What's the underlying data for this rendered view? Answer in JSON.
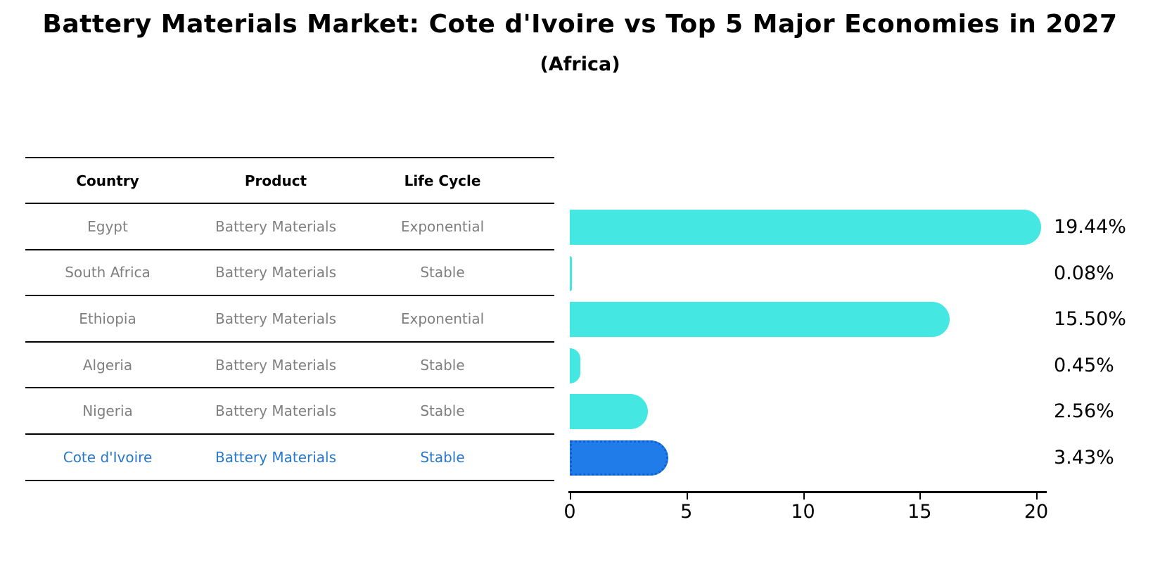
{
  "title": "Battery Materials Market: Cote d'Ivoire vs Top 5 Major Economies in 2027",
  "subtitle": "(Africa)",
  "table": {
    "headers": [
      "Country",
      "Product",
      "Life Cycle"
    ],
    "rows": [
      {
        "country": "Egypt",
        "product": "Battery Materials",
        "life_cycle": "Exponential",
        "highlight": false
      },
      {
        "country": "South Africa",
        "product": "Battery Materials",
        "life_cycle": "Stable",
        "highlight": false
      },
      {
        "country": "Ethiopia",
        "product": "Battery Materials",
        "life_cycle": "Exponential",
        "highlight": false
      },
      {
        "country": "Algeria",
        "product": "Battery Materials",
        "life_cycle": "Stable",
        "highlight": false
      },
      {
        "country": "Nigeria",
        "product": "Battery Materials",
        "life_cycle": "Stable",
        "highlight": true
      }
    ],
    "note_last_row": {
      "country": "Cote d'Ivoire",
      "product": "Battery Materials",
      "life_cycle": "Stable"
    }
  },
  "chart_data": {
    "type": "bar",
    "orientation": "horizontal",
    "title": "Battery Materials Market: Cote d'Ivoire vs Top 5 Major Economies in 2027 (Africa)",
    "categories": [
      "Egypt",
      "South Africa",
      "Ethiopia",
      "Algeria",
      "Nigeria",
      "Cote d'Ivoire"
    ],
    "values": [
      19.44,
      0.08,
      15.5,
      0.45,
      2.56,
      3.43
    ],
    "value_labels": [
      "19.44%",
      "0.08%",
      "15.50%",
      "0.45%",
      "2.56%",
      "3.43%"
    ],
    "xlabel": "",
    "ylabel": "",
    "xticks": [
      0,
      5,
      10,
      15,
      20
    ],
    "xlim": [
      0,
      20.5
    ],
    "grid": false,
    "legend": false,
    "highlight_index": 5,
    "bar_color": "#45e7e2",
    "highlight_color": "#1f7ce8",
    "highlight_border_color": "#1260cf",
    "label_color": "#000000"
  },
  "colors": {
    "background": "#ffffff",
    "table_text": "#7f7f7f",
    "table_header_text": "#000000",
    "highlight_text": "#2878c8",
    "line": "#000000"
  }
}
